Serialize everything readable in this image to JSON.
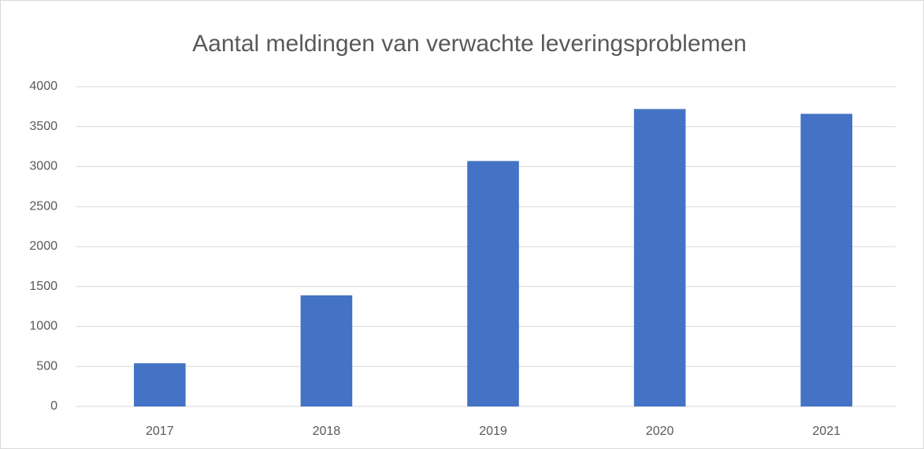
{
  "chart_data": {
    "type": "bar",
    "title": "Aantal meldingen van verwachte leveringsproblemen",
    "categories": [
      "2017",
      "2018",
      "2019",
      "2020",
      "2021"
    ],
    "values": [
      540,
      1390,
      3070,
      3720,
      3660
    ],
    "color": "#4472c4",
    "ylim": [
      0,
      4000
    ],
    "yticks": [
      0,
      500,
      1000,
      1500,
      2000,
      2500,
      3000,
      3500,
      4000
    ],
    "grid": true
  }
}
